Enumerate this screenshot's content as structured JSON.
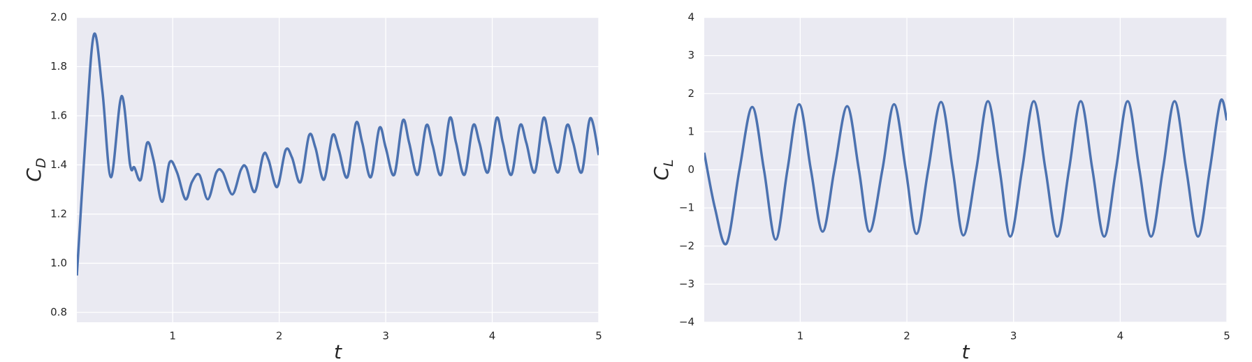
{
  "chart_data": [
    {
      "type": "line",
      "xlabel": "t",
      "ylabel": "C",
      "ylabel_subscript": "D",
      "color": "#4c72b0",
      "grid": true,
      "xlim": [
        0.1,
        5
      ],
      "ylim": [
        0.76,
        2.0
      ],
      "xticks": [
        1,
        2,
        3,
        4,
        5
      ],
      "yticks": [
        0.8,
        {
          "value": 1,
          "label": "1.0"
        },
        1.2,
        1.4,
        1.6,
        1.8,
        {
          "value": 2,
          "label": "2.0"
        }
      ],
      "x": [
        0.1,
        0.18,
        0.26,
        0.34,
        0.42,
        0.52,
        0.6,
        0.64,
        0.7,
        0.76,
        0.82,
        0.9,
        0.97,
        1.04,
        1.12,
        1.18,
        1.25,
        1.33,
        1.41,
        1.47,
        1.56,
        1.64,
        1.69,
        1.77,
        1.85,
        1.9,
        1.98,
        2.06,
        2.12,
        2.2,
        2.28,
        2.34,
        2.42,
        2.5,
        2.56,
        2.64,
        2.72,
        2.78,
        2.86,
        2.94,
        3.0,
        3.08,
        3.16,
        3.22,
        3.3,
        3.38,
        3.44,
        3.52,
        3.6,
        3.66,
        3.74,
        3.82,
        3.88,
        3.96,
        4.04,
        4.1,
        4.18,
        4.26,
        4.32,
        4.4,
        4.48,
        4.54,
        4.62,
        4.7,
        4.76,
        4.84,
        4.92,
        5.0
      ],
      "values": [
        0.95,
        1.5,
        1.93,
        1.7,
        1.35,
        1.68,
        1.4,
        1.39,
        1.34,
        1.49,
        1.42,
        1.25,
        1.41,
        1.37,
        1.26,
        1.33,
        1.36,
        1.26,
        1.37,
        1.37,
        1.28,
        1.38,
        1.39,
        1.29,
        1.44,
        1.42,
        1.31,
        1.46,
        1.43,
        1.33,
        1.52,
        1.47,
        1.34,
        1.52,
        1.46,
        1.35,
        1.57,
        1.49,
        1.35,
        1.55,
        1.47,
        1.36,
        1.58,
        1.49,
        1.36,
        1.56,
        1.48,
        1.36,
        1.59,
        1.49,
        1.36,
        1.56,
        1.49,
        1.37,
        1.59,
        1.49,
        1.36,
        1.56,
        1.49,
        1.37,
        1.59,
        1.49,
        1.37,
        1.56,
        1.49,
        1.37,
        1.59,
        1.44
      ]
    },
    {
      "type": "line",
      "xlabel": "t",
      "ylabel": "C",
      "ylabel_subscript": "L",
      "color": "#4c72b0",
      "grid": true,
      "xlim": [
        0.1,
        5
      ],
      "ylim": [
        -4,
        4
      ],
      "xticks": [
        1,
        2,
        3,
        4,
        5
      ],
      "yticks": [
        {
          "value": -4,
          "label": "−4"
        },
        {
          "value": -3,
          "label": "−3"
        },
        {
          "value": -2,
          "label": "−2"
        },
        {
          "value": -1,
          "label": "−1"
        },
        0,
        1,
        2,
        3,
        4
      ],
      "x": [
        0.1,
        0.2,
        0.31,
        0.43,
        0.55,
        0.66,
        0.77,
        0.88,
        0.99,
        1.1,
        1.21,
        1.32,
        1.44,
        1.55,
        1.65,
        1.77,
        1.88,
        1.99,
        2.09,
        2.2,
        2.32,
        2.43,
        2.53,
        2.65,
        2.76,
        2.87,
        2.97,
        3.08,
        3.19,
        3.3,
        3.41,
        3.52,
        3.63,
        3.74,
        3.85,
        3.96,
        4.07,
        4.18,
        4.29,
        4.4,
        4.51,
        4.62,
        4.73,
        4.84,
        4.94,
        5.0
      ],
      "values": [
        0.45,
        -1.0,
        -1.93,
        0,
        1.65,
        0,
        -1.83,
        0,
        1.72,
        0,
        -1.62,
        0,
        1.67,
        0,
        -1.62,
        0,
        1.72,
        0,
        -1.68,
        0,
        1.78,
        0,
        -1.72,
        0,
        1.8,
        0,
        -1.75,
        0,
        1.8,
        0,
        -1.75,
        0,
        1.8,
        0,
        -1.75,
        0,
        1.8,
        0,
        -1.75,
        0,
        1.8,
        0,
        -1.75,
        0,
        1.8,
        1.3
      ]
    }
  ]
}
